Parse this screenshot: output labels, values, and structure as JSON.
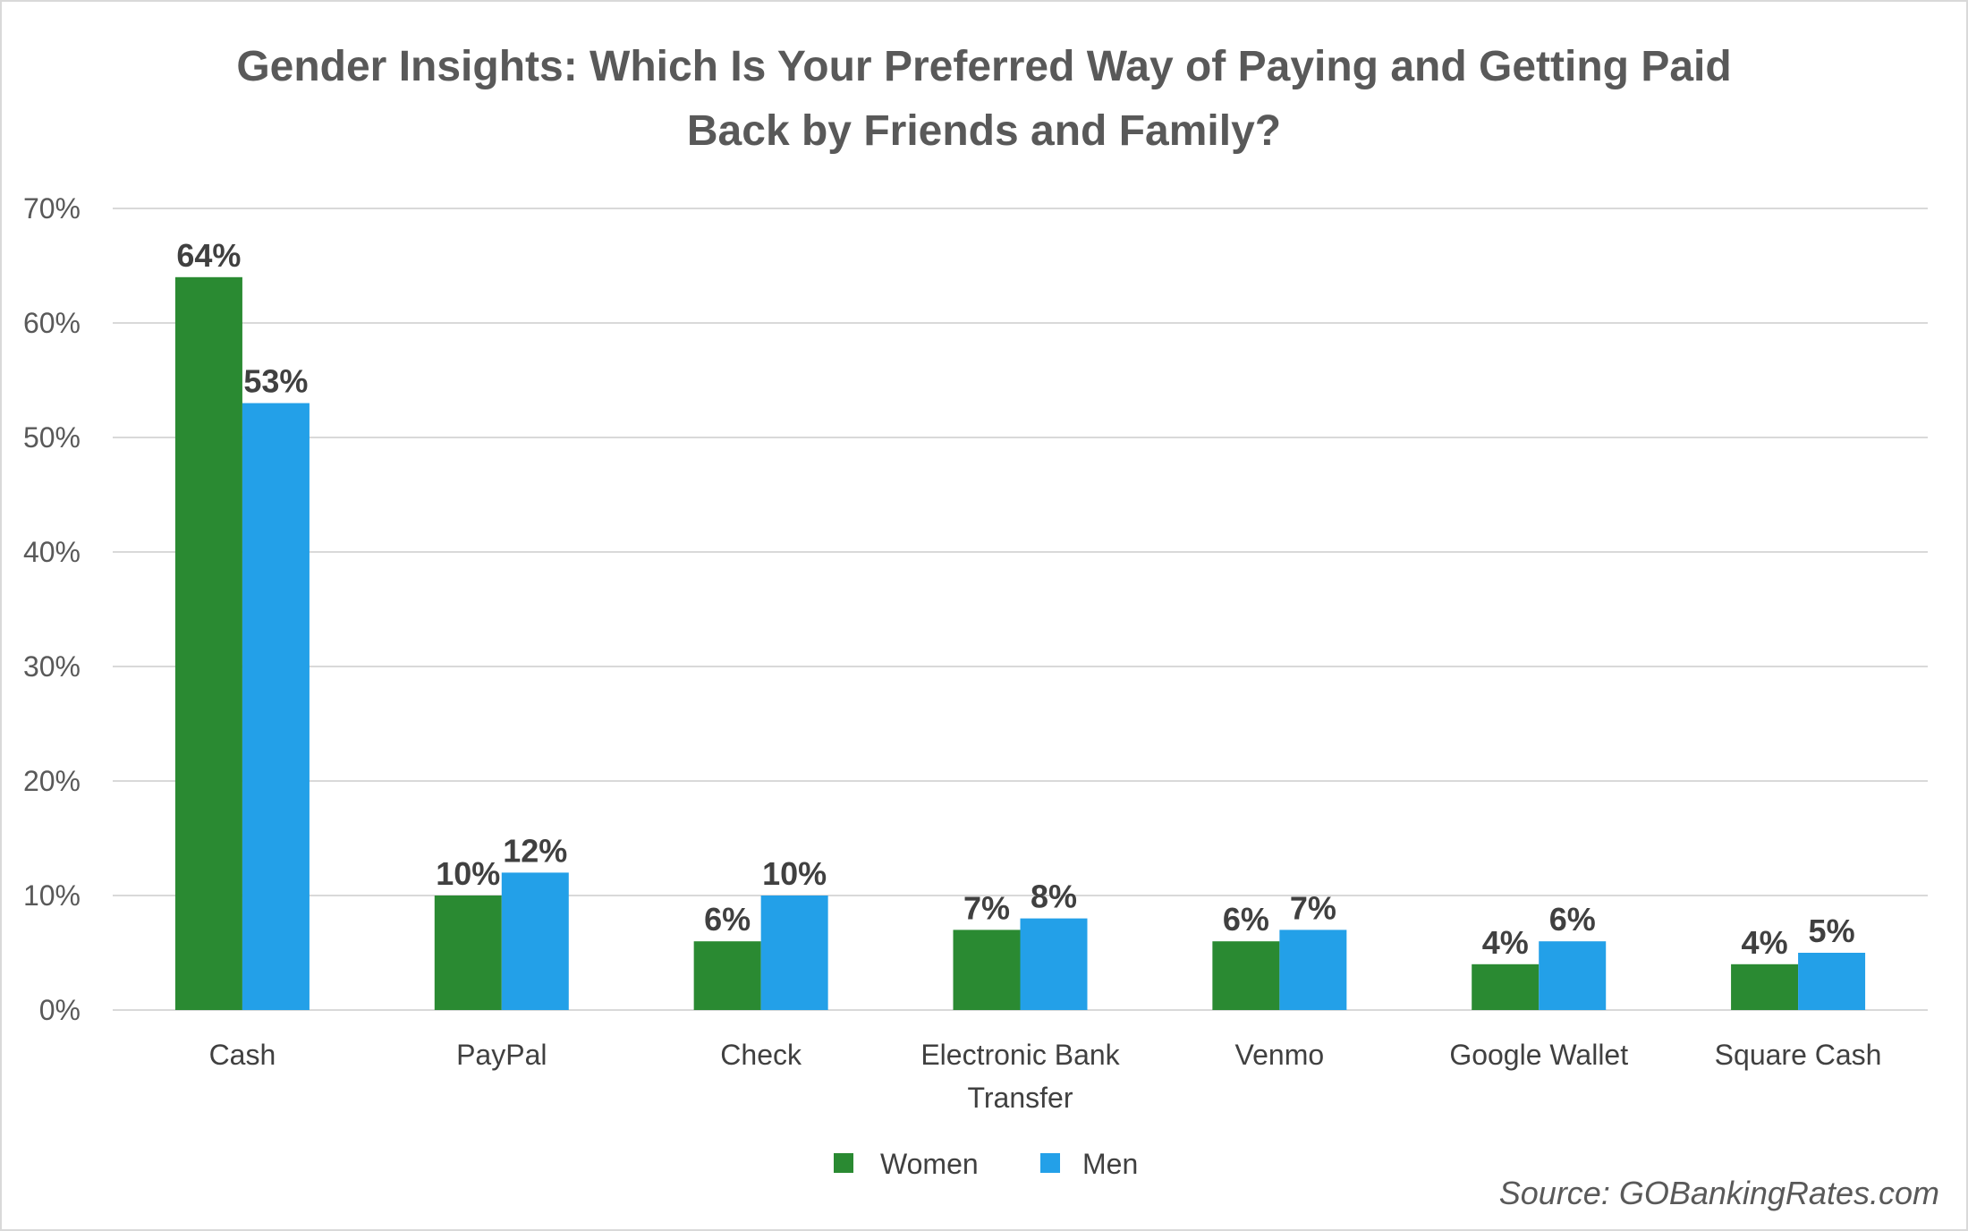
{
  "chart_data": {
    "type": "bar",
    "title_lines": [
      "Gender Insights: Which Is Your Preferred Way of Paying and Getting Paid",
      "Back by Friends and Family?"
    ],
    "categories": [
      "Cash",
      "PayPal",
      "Check",
      "Electronic Bank Transfer",
      "Venmo",
      "Google Wallet",
      "Square Cash"
    ],
    "category_lines": [
      [
        "Cash"
      ],
      [
        "PayPal"
      ],
      [
        "Check"
      ],
      [
        "Electronic Bank",
        "Transfer"
      ],
      [
        "Venmo"
      ],
      [
        "Google Wallet"
      ],
      [
        "Square Cash"
      ]
    ],
    "series": [
      {
        "name": "Women",
        "color": "#2a8a32",
        "values": [
          64,
          10,
          6,
          7,
          6,
          4,
          4
        ],
        "labels": [
          "64%",
          "10%",
          "6%",
          "7%",
          "6%",
          "4%",
          "4%"
        ]
      },
      {
        "name": "Men",
        "color": "#23a0e8",
        "values": [
          53,
          12,
          10,
          8,
          7,
          6,
          5
        ],
        "labels": [
          "53%",
          "12%",
          "10%",
          "8%",
          "7%",
          "6%",
          "5%"
        ]
      }
    ],
    "ylim": [
      0,
      70
    ],
    "yticks": [
      0,
      10,
      20,
      30,
      40,
      50,
      60,
      70
    ],
    "ytick_labels": [
      "0%",
      "10%",
      "20%",
      "30%",
      "40%",
      "50%",
      "60%",
      "70%"
    ],
    "grid": true,
    "gridline_color": "#d9d9d9",
    "legend_position": "bottom",
    "source": "Source: GOBankingRates.com"
  }
}
